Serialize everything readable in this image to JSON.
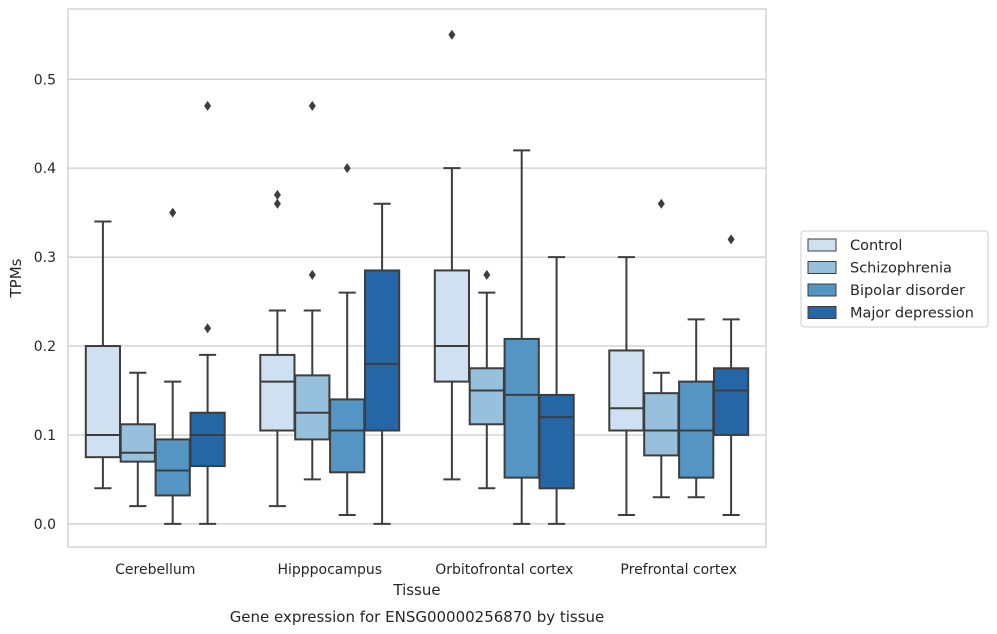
{
  "chart_data": {
    "type": "box",
    "xlabel": "Tissue",
    "ylabel": "TPMs",
    "caption": "Gene expression for ENSG00000256870 by tissue",
    "ylim": [
      -0.026,
      0.579
    ],
    "yticks": [
      0.0,
      0.1,
      0.2,
      0.3,
      0.4,
      0.5
    ],
    "ytick_labels": [
      "0.0",
      "0.1",
      "0.2",
      "0.3",
      "0.4",
      "0.5"
    ],
    "grid": "horizontal",
    "legend_position": "right",
    "categories": [
      "Cerebellum",
      "Hipppocampus",
      "Orbitofrontal cortex",
      "Prefrontal cortex"
    ],
    "series": [
      {
        "name": "Control",
        "color": "#cfe0f0",
        "boxes": [
          {
            "whislo": 0.04,
            "q1": 0.075,
            "med": 0.1,
            "q3": 0.2,
            "whishi": 0.34,
            "fliers": []
          },
          {
            "whislo": 0.02,
            "q1": 0.105,
            "med": 0.16,
            "q3": 0.19,
            "whishi": 0.24,
            "fliers": [
              0.36,
              0.37
            ]
          },
          {
            "whislo": 0.05,
            "q1": 0.16,
            "med": 0.2,
            "q3": 0.285,
            "whishi": 0.4,
            "fliers": [
              0.55
            ]
          },
          {
            "whislo": 0.01,
            "q1": 0.105,
            "med": 0.13,
            "q3": 0.195,
            "whishi": 0.3,
            "fliers": []
          }
        ]
      },
      {
        "name": "Schizophrenia",
        "color": "#97c0dc",
        "boxes": [
          {
            "whislo": 0.02,
            "q1": 0.07,
            "med": 0.08,
            "q3": 0.112,
            "whishi": 0.17,
            "fliers": []
          },
          {
            "whislo": 0.05,
            "q1": 0.095,
            "med": 0.125,
            "q3": 0.167,
            "whishi": 0.24,
            "fliers": [
              0.28,
              0.47
            ]
          },
          {
            "whislo": 0.04,
            "q1": 0.112,
            "med": 0.15,
            "q3": 0.175,
            "whishi": 0.26,
            "fliers": [
              0.28
            ]
          },
          {
            "whislo": 0.03,
            "q1": 0.077,
            "med": 0.105,
            "q3": 0.147,
            "whishi": 0.17,
            "fliers": [
              0.36
            ]
          }
        ]
      },
      {
        "name": "Bipolar disorder",
        "color": "#5495c3",
        "boxes": [
          {
            "whislo": 0.0,
            "q1": 0.032,
            "med": 0.06,
            "q3": 0.095,
            "whishi": 0.16,
            "fliers": [
              0.35
            ]
          },
          {
            "whislo": 0.01,
            "q1": 0.058,
            "med": 0.105,
            "q3": 0.14,
            "whishi": 0.26,
            "fliers": [
              0.4
            ]
          },
          {
            "whislo": 0.0,
            "q1": 0.052,
            "med": 0.145,
            "q3": 0.208,
            "whishi": 0.42,
            "fliers": []
          },
          {
            "whislo": 0.03,
            "q1": 0.052,
            "med": 0.105,
            "q3": 0.16,
            "whishi": 0.23,
            "fliers": []
          }
        ]
      },
      {
        "name": "Major depression",
        "color": "#2566a6",
        "boxes": [
          {
            "whislo": 0.0,
            "q1": 0.065,
            "med": 0.1,
            "q3": 0.125,
            "whishi": 0.19,
            "fliers": [
              0.22,
              0.47
            ]
          },
          {
            "whislo": 0.0,
            "q1": 0.105,
            "med": 0.18,
            "q3": 0.285,
            "whishi": 0.36,
            "fliers": []
          },
          {
            "whislo": 0.0,
            "q1": 0.04,
            "med": 0.12,
            "q3": 0.145,
            "whishi": 0.3,
            "fliers": []
          },
          {
            "whislo": 0.01,
            "q1": 0.1,
            "med": 0.15,
            "q3": 0.175,
            "whishi": 0.23,
            "fliers": [
              0.32
            ]
          }
        ]
      }
    ]
  }
}
